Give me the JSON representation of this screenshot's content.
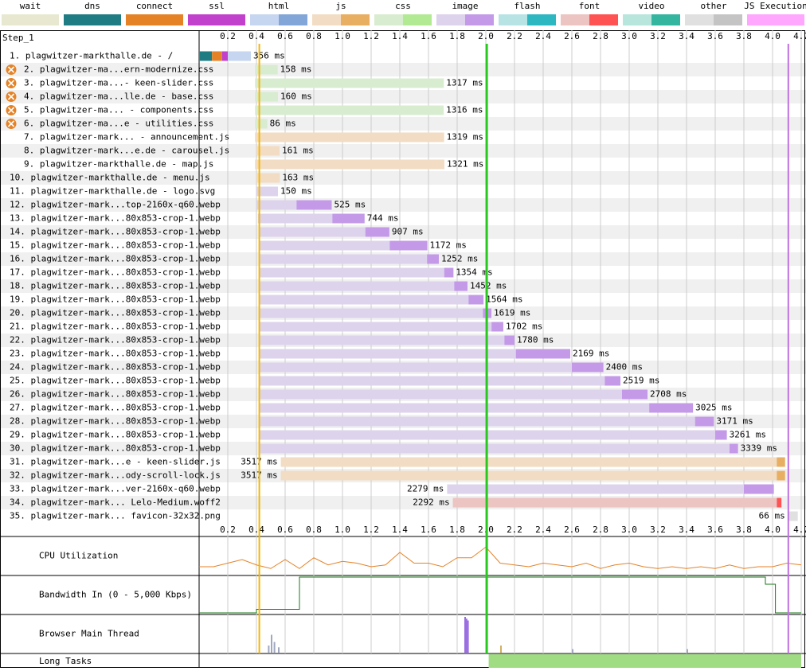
{
  "legend": [
    {
      "name": "wait",
      "color": "#e8e8d0"
    },
    {
      "name": "dns",
      "color": "#1f7c83"
    },
    {
      "name": "connect",
      "color": "#e58226"
    },
    {
      "name": "ssl",
      "color": "#c141cd"
    },
    {
      "name": "html",
      "color": "#c6d6f0",
      "dark": "#82a6d8"
    },
    {
      "name": "js",
      "color": "#f2dcc3",
      "dark": "#e8ae61"
    },
    {
      "name": "css",
      "color": "#d8ecd0",
      "dark": "#b2ea94"
    },
    {
      "name": "image",
      "color": "#ddd3ec",
      "dark": "#c49ae8"
    },
    {
      "name": "flash",
      "color": "#b8e3e4",
      "dark": "#2db7c1"
    },
    {
      "name": "font",
      "color": "#ecc4c2",
      "dark": "#ff5252"
    },
    {
      "name": "video",
      "color": "#b8e6dc",
      "dark": "#33b5a0"
    },
    {
      "name": "other",
      "color": "#e0e0e0",
      "dark": "#c4c4c4"
    },
    {
      "name": "JS Execution",
      "color": "#ffa6ff"
    }
  ],
  "chart_data": {
    "type": "waterfall",
    "title": "Step_1",
    "xlim": [
      0,
      4.2
    ],
    "xticks": [
      0.2,
      0.4,
      0.6,
      0.8,
      {
        "value": 1,
        "label": "1.0"
      },
      1.2,
      1.4,
      1.6,
      1.8,
      {
        "value": 2,
        "label": "2.0"
      },
      2.2,
      2.4,
      2.6,
      2.8,
      {
        "value": 3,
        "label": "3.0"
      },
      3.2,
      3.4,
      3.6,
      3.8,
      {
        "value": 4,
        "label": "4.0"
      },
      4.2
    ],
    "markers": [
      {
        "value": 0.42,
        "color": "#f5b700"
      },
      {
        "value": 2.006,
        "color": "#28c81e"
      },
      {
        "value": 4.11,
        "color": "#c070e0"
      }
    ],
    "rows": [
      {
        "label": "1. plagwitzer-markthalle.de - /",
        "type": "html",
        "start": 0.005,
        "duration": 356,
        "duration_label": "356 ms",
        "phases": [
          {
            "type": "dns",
            "start": 0.005,
            "end": 0.09
          },
          {
            "type": "connect",
            "start": 0.09,
            "end": 0.16
          },
          {
            "type": "ssl",
            "start": 0.16,
            "end": 0.2
          }
        ]
      },
      {
        "label": "2. plagwitzer-ma...ern-modernize.css",
        "type": "css",
        "start": 0.39,
        "duration": 158,
        "duration_label": "158 ms",
        "blocking": true
      },
      {
        "label": "3. plagwitzer-ma...- keen-slider.css",
        "type": "css",
        "start": 0.39,
        "duration": 1317,
        "duration_label": "1317 ms",
        "blocking": true
      },
      {
        "label": "4. plagwitzer-ma...lle.de - base.css",
        "type": "css",
        "start": 0.39,
        "duration": 160,
        "duration_label": "160 ms",
        "blocking": true
      },
      {
        "label": "5. plagwitzer-ma... - components.css",
        "type": "css",
        "start": 0.39,
        "duration": 1316,
        "duration_label": "1316 ms",
        "blocking": true
      },
      {
        "label": "6. plagwitzer-ma...e - utilities.css",
        "type": "css",
        "start": 0.39,
        "duration": 86,
        "duration_label": "86 ms",
        "blocking": true
      },
      {
        "label": "7. plagwitzer-mark... - announcement.js",
        "type": "js",
        "start": 0.39,
        "duration": 1319,
        "duration_label": "1319 ms"
      },
      {
        "label": "8. plagwitzer-mark...e.de - carousel.js",
        "type": "js",
        "start": 0.4,
        "duration": 161,
        "duration_label": "161 ms"
      },
      {
        "label": "9. plagwitzer-markthalle.de - map.js",
        "type": "js",
        "start": 0.39,
        "duration": 1321,
        "duration_label": "1321 ms"
      },
      {
        "label": "10. plagwitzer-markthalle.de - menu.js",
        "type": "js",
        "start": 0.4,
        "duration": 163,
        "duration_label": "163 ms"
      },
      {
        "label": "11. plagwitzer-markthalle.de - logo.svg",
        "type": "image",
        "start": 0.4,
        "duration": 150,
        "duration_label": "150 ms"
      },
      {
        "label": "12. plagwitzer-mark...top-2160x-q60.webp",
        "type": "image",
        "start": 0.4,
        "duration": 525,
        "duration_label": "525 ms",
        "download_start": 0.68
      },
      {
        "label": "13. plagwitzer-mark...80x853-crop-1.webp",
        "type": "image",
        "start": 0.41,
        "duration": 744,
        "duration_label": "744 ms",
        "download_start": 0.93
      },
      {
        "label": "14. plagwitzer-mark...80x853-crop-1.webp",
        "type": "image",
        "start": 0.42,
        "duration": 907,
        "duration_label": "907 ms",
        "download_start": 1.16
      },
      {
        "label": "15. plagwitzer-mark...80x853-crop-1.webp",
        "type": "image",
        "start": 0.42,
        "duration": 1172,
        "duration_label": "1172 ms",
        "download_start": 1.33
      },
      {
        "label": "16. plagwitzer-mark...80x853-crop-1.webp",
        "type": "image",
        "start": 0.42,
        "duration": 1252,
        "duration_label": "1252 ms",
        "download_start": 1.59
      },
      {
        "label": "17. plagwitzer-mark...80x853-crop-1.webp",
        "type": "image",
        "start": 0.42,
        "duration": 1354,
        "duration_label": "1354 ms",
        "download_start": 1.71
      },
      {
        "label": "18. plagwitzer-mark...80x853-crop-1.webp",
        "type": "image",
        "start": 0.42,
        "duration": 1452,
        "duration_label": "1452 ms",
        "download_start": 1.78
      },
      {
        "label": "19. plagwitzer-mark...80x853-crop-1.webp",
        "type": "image",
        "start": 0.42,
        "duration": 1564,
        "duration_label": "1564 ms",
        "download_start": 1.88
      },
      {
        "label": "20. plagwitzer-mark...80x853-crop-1.webp",
        "type": "image",
        "start": 0.42,
        "duration": 1619,
        "duration_label": "1619 ms",
        "download_start": 1.98
      },
      {
        "label": "21. plagwitzer-mark...80x853-crop-1.webp",
        "type": "image",
        "start": 0.42,
        "duration": 1702,
        "duration_label": "1702 ms",
        "download_start": 2.04
      },
      {
        "label": "22. plagwitzer-mark...80x853-crop-1.webp",
        "type": "image",
        "start": 0.42,
        "duration": 1780,
        "duration_label": "1780 ms",
        "download_start": 2.13
      },
      {
        "label": "23. plagwitzer-mark...80x853-crop-1.webp",
        "type": "image",
        "start": 0.42,
        "duration": 2169,
        "duration_label": "2169 ms",
        "download_start": 2.21
      },
      {
        "label": "24. plagwitzer-mark...80x853-crop-1.webp",
        "type": "image",
        "start": 0.42,
        "duration": 2400,
        "duration_label": "2400 ms",
        "download_start": 2.6
      },
      {
        "label": "25. plagwitzer-mark...80x853-crop-1.webp",
        "type": "image",
        "start": 0.42,
        "duration": 2519,
        "duration_label": "2519 ms",
        "download_start": 2.83
      },
      {
        "label": "26. plagwitzer-mark...80x853-crop-1.webp",
        "type": "image",
        "start": 0.42,
        "duration": 2708,
        "duration_label": "2708 ms",
        "download_start": 2.95
      },
      {
        "label": "27. plagwitzer-mark...80x853-crop-1.webp",
        "type": "image",
        "start": 0.42,
        "duration": 3025,
        "duration_label": "3025 ms",
        "download_start": 3.14
      },
      {
        "label": "28. plagwitzer-mark...80x853-crop-1.webp",
        "type": "image",
        "start": 0.42,
        "duration": 3171,
        "duration_label": "3171 ms",
        "download_start": 3.46
      },
      {
        "label": "29. plagwitzer-mark...80x853-crop-1.webp",
        "type": "image",
        "start": 0.42,
        "duration": 3261,
        "duration_label": "3261 ms",
        "download_start": 3.6
      },
      {
        "label": "30. plagwitzer-mark...80x853-crop-1.webp",
        "type": "image",
        "start": 0.42,
        "duration": 3339,
        "duration_label": "3339 ms",
        "download_start": 3.7
      },
      {
        "label": "31. plagwitzer-mark...e - keen-slider.js",
        "type": "js",
        "start": 0.57,
        "duration": 3517,
        "duration_label": "3517 ms",
        "download_start": 4.03
      },
      {
        "label": "32. plagwitzer-mark...ody-scroll-lock.js",
        "type": "js",
        "start": 0.57,
        "duration": 3517,
        "duration_label": "3517 ms",
        "download_start": 4.03
      },
      {
        "label": "33. plagwitzer-mark...ver-2160x-q60.webp",
        "type": "image",
        "start": 1.73,
        "duration": 2279,
        "duration_label": "2279 ms",
        "download_start": 3.8
      },
      {
        "label": "34. plagwitzer-mark... Lelo-Medium.woff2",
        "type": "font",
        "start": 1.77,
        "duration": 2292,
        "duration_label": "2292 ms",
        "download_start": 4.03
      },
      {
        "label": "35. plagwitzer-mark... favicon-32x32.png",
        "type": "other",
        "start": 4.11,
        "duration": 66,
        "duration_label": "66 ms"
      }
    ],
    "cpu": {
      "label": "CPU Utilization",
      "color": "#e58226",
      "ylim": [
        0,
        100
      ],
      "x": [
        0,
        0.1,
        0.2,
        0.3,
        0.4,
        0.5,
        0.6,
        0.7,
        0.8,
        0.9,
        1,
        1.1,
        1.2,
        1.3,
        1.4,
        1.5,
        1.6,
        1.7,
        1.8,
        1.9,
        2,
        2.1,
        2.2,
        2.3,
        2.4,
        2.5,
        2.6,
        2.7,
        2.8,
        2.9,
        3,
        3.1,
        3.2,
        3.3,
        3.4,
        3.5,
        3.6,
        3.7,
        3.8,
        3.9,
        4,
        4.1,
        4.2
      ],
      "values": [
        20,
        20,
        30,
        40,
        25,
        15,
        40,
        15,
        45,
        25,
        35,
        30,
        20,
        25,
        60,
        30,
        30,
        20,
        45,
        45,
        75,
        30,
        25,
        20,
        30,
        25,
        20,
        30,
        15,
        25,
        30,
        20,
        15,
        20,
        15,
        20,
        15,
        25,
        15,
        20,
        20,
        30,
        25
      ]
    },
    "bandwidth": {
      "label": "Bandwidth In (0 - 5,000 Kbps)",
      "color": "#1a7a1a",
      "ylim": [
        0,
        5000
      ],
      "x": [
        0,
        0.4,
        0.4,
        0.7,
        0.7,
        3.95,
        3.95,
        4.02,
        4.02,
        4.2
      ],
      "values": [
        0,
        0,
        500,
        500,
        5000,
        5000,
        4000,
        4000,
        0,
        0
      ]
    },
    "main_thread": {
      "label": "Browser Main Thread",
      "ylim": [
        0,
        100
      ],
      "x": [
        0.48,
        0.5,
        0.52,
        0.55,
        1.85,
        1.86,
        1.87,
        2.1,
        2.6,
        3.4
      ],
      "values": [
        20,
        50,
        30,
        15,
        100,
        95,
        90,
        20,
        10,
        10
      ],
      "colors": [
        "#a0a8c0",
        "#a0a8c0",
        "#a0a8c0",
        "#a0a8c0",
        "#9a6ee0",
        "#9a6ee0",
        "#9a6ee0",
        "#d0b060",
        "#a0a8c0",
        "#a0a8c0"
      ]
    },
    "long_tasks": {
      "label": "Long Tasks",
      "color": "#9fdc82",
      "spans": [
        {
          "start": 2.02,
          "end": 4.2
        }
      ]
    }
  }
}
